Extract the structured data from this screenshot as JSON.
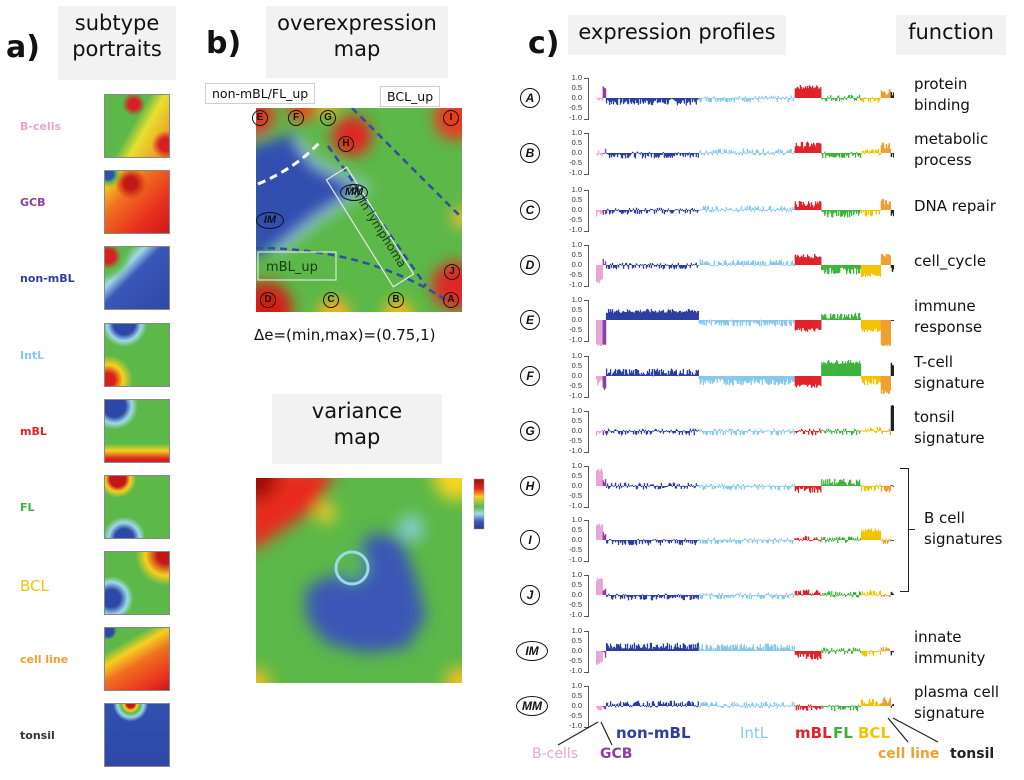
{
  "panel_a": {
    "letter": "a)",
    "title_line1": "subtype",
    "title_line2": "portraits",
    "portraits": [
      {
        "label": "B-cells",
        "color": "#e7a6d6"
      },
      {
        "label": "GCB",
        "color": "#8d3fa0"
      },
      {
        "label": "non-mBL",
        "color": "#2e3ea0"
      },
      {
        "label": "IntL",
        "color": "#86c8ee"
      },
      {
        "label": "mBL",
        "color": "#e0232a"
      },
      {
        "label": "FL",
        "color": "#3db23c"
      },
      {
        "label": "BCL",
        "color": "#f6c300"
      },
      {
        "label": "cell line",
        "color": "#f0a030"
      },
      {
        "label": "tonsil",
        "color": "#333333"
      }
    ]
  },
  "panel_b": {
    "letter": "b)",
    "overexpression_title_line1": "overexpression",
    "overexpression_title_line2": "map",
    "annotations": {
      "non_mbl_fl_up": "non-mBL/FL_up",
      "bcl_up": "BCL_up",
      "dn_in_lymphoma": "dn in lymphoma",
      "mbl_up": "mBL_up"
    },
    "spot_labels": [
      "E",
      "F",
      "G",
      "H",
      "I",
      "MM",
      "IM",
      "J",
      "D",
      "C",
      "B",
      "A"
    ],
    "delta_text": "Δe=(min,max)=(0.75,1)",
    "variance_title_line1": "variance",
    "variance_title_line2": "map"
  },
  "panel_c": {
    "letter": "c)",
    "title": "expression profiles",
    "function_title": "function",
    "y_ticks": [
      "1.0",
      "0.5",
      "0.0",
      "-0.5",
      "-1.0"
    ],
    "bracket_label_line1": "B cell",
    "bracket_label_line2": "signatures"
  },
  "chart_data": {
    "type": "bar",
    "title": "expression profiles",
    "ylim": [
      -1.0,
      1.0
    ],
    "yticks": [
      1.0,
      0.5,
      0.0,
      -0.5,
      -1.0
    ],
    "subtypes": [
      {
        "name": "B-cells",
        "color": "#e7a6d6",
        "weight": 2
      },
      {
        "name": "GCB",
        "color": "#8d3fa0",
        "weight": 1
      },
      {
        "name": "non-mBL",
        "color": "#2e3ea0",
        "weight": 28
      },
      {
        "name": "IntL",
        "color": "#86c8ee",
        "weight": 29
      },
      {
        "name": "mBL",
        "color": "#e0232a",
        "weight": 8
      },
      {
        "name": "FL",
        "color": "#3db23c",
        "weight": 12
      },
      {
        "name": "BCL",
        "color": "#f6c300",
        "weight": 6
      },
      {
        "name": "cell line",
        "color": "#f0a030",
        "weight": 3
      },
      {
        "name": "tonsil",
        "color": "#222222",
        "weight": 1
      }
    ],
    "series": [
      {
        "name": "A",
        "function": [
          "protein",
          "binding"
        ],
        "values": [
          0.0,
          0.5,
          -0.2,
          -0.05,
          0.55,
          0.0,
          -0.1,
          0.3,
          0.15
        ]
      },
      {
        "name": "B",
        "function": [
          "metabolic",
          "process"
        ],
        "values": [
          0.0,
          0.05,
          -0.1,
          0.05,
          0.4,
          -0.1,
          0.05,
          0.35,
          -0.1
        ]
      },
      {
        "name": "C",
        "function": [
          "DNA repair"
        ],
        "values": [
          -0.2,
          -0.1,
          -0.05,
          0.05,
          0.3,
          -0.2,
          -0.15,
          0.4,
          -0.3
        ]
      },
      {
        "name": "D",
        "function": [
          "cell_cycle"
        ],
        "values": [
          -0.8,
          0.2,
          -0.05,
          0.1,
          0.45,
          -0.3,
          -0.5,
          0.5,
          -0.3
        ]
      },
      {
        "name": "E",
        "function": [
          "immune",
          "response"
        ],
        "values": [
          -1.2,
          -1.3,
          0.45,
          -0.15,
          -0.5,
          0.2,
          -0.5,
          -1.3,
          0.1
        ]
      },
      {
        "name": "F",
        "function": [
          "T-cell",
          "signature"
        ],
        "values": [
          -0.3,
          -0.6,
          0.2,
          -0.3,
          -0.5,
          0.7,
          -0.3,
          -0.8,
          0.6
        ]
      },
      {
        "name": "G",
        "function": [
          "tonsil",
          "signature"
        ],
        "values": [
          -0.05,
          -0.05,
          -0.05,
          -0.05,
          -0.05,
          -0.05,
          0.05,
          -0.05,
          1.3
        ]
      },
      {
        "name": "H",
        "function": [],
        "values": [
          0.8,
          0.3,
          0.0,
          -0.05,
          -0.2,
          0.2,
          -0.1,
          -0.2,
          0.15
        ]
      },
      {
        "name": "I",
        "function": [],
        "values": [
          0.75,
          0.3,
          -0.1,
          -0.05,
          0.05,
          0.0,
          0.5,
          -0.05,
          -0.1
        ]
      },
      {
        "name": "J",
        "function": [],
        "values": [
          0.8,
          0.3,
          -0.1,
          -0.05,
          0.1,
          0.05,
          0.1,
          -0.1,
          0.1
        ]
      },
      {
        "name": "IM",
        "function": [
          "innate",
          "immunity"
        ],
        "values": [
          -0.6,
          -0.2,
          0.25,
          0.2,
          -0.3,
          0.0,
          -0.1,
          0.1,
          -0.1
        ]
      },
      {
        "name": "MM",
        "function": [
          "plasma cell",
          "signature"
        ],
        "values": [
          -0.1,
          -0.05,
          0.1,
          0.05,
          -0.1,
          -0.1,
          0.2,
          0.3,
          0.0
        ]
      }
    ]
  }
}
